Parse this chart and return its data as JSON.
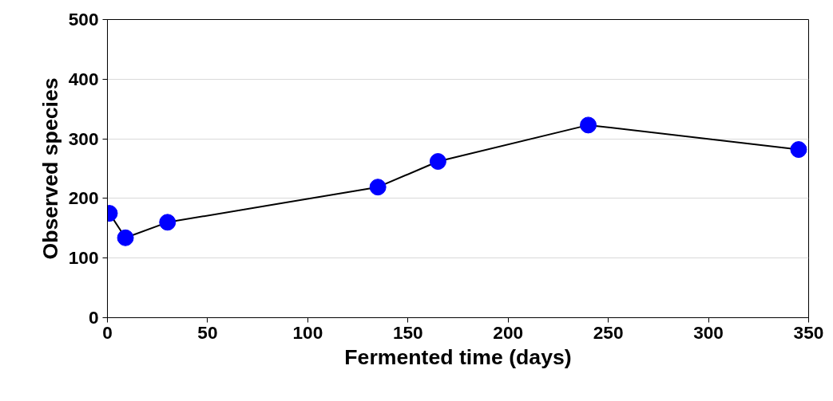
{
  "chart_data": {
    "type": "line",
    "xlabel": "Fermented time (days)",
    "ylabel": "Observed species",
    "x": [
      1,
      9,
      30,
      135,
      165,
      240,
      345
    ],
    "series": [
      {
        "color": "#0000ff",
        "values": [
          175,
          134,
          160,
          219,
          262,
          323,
          282
        ]
      }
    ],
    "xlim": [
      0,
      350
    ],
    "xticks": [
      0,
      50,
      100,
      150,
      200,
      250,
      300,
      350
    ],
    "ylim": [
      0,
      500
    ],
    "yticks": [
      0,
      100,
      200,
      300,
      400,
      500
    ],
    "grid": "y",
    "marker": "circle",
    "line_style": "solid"
  }
}
